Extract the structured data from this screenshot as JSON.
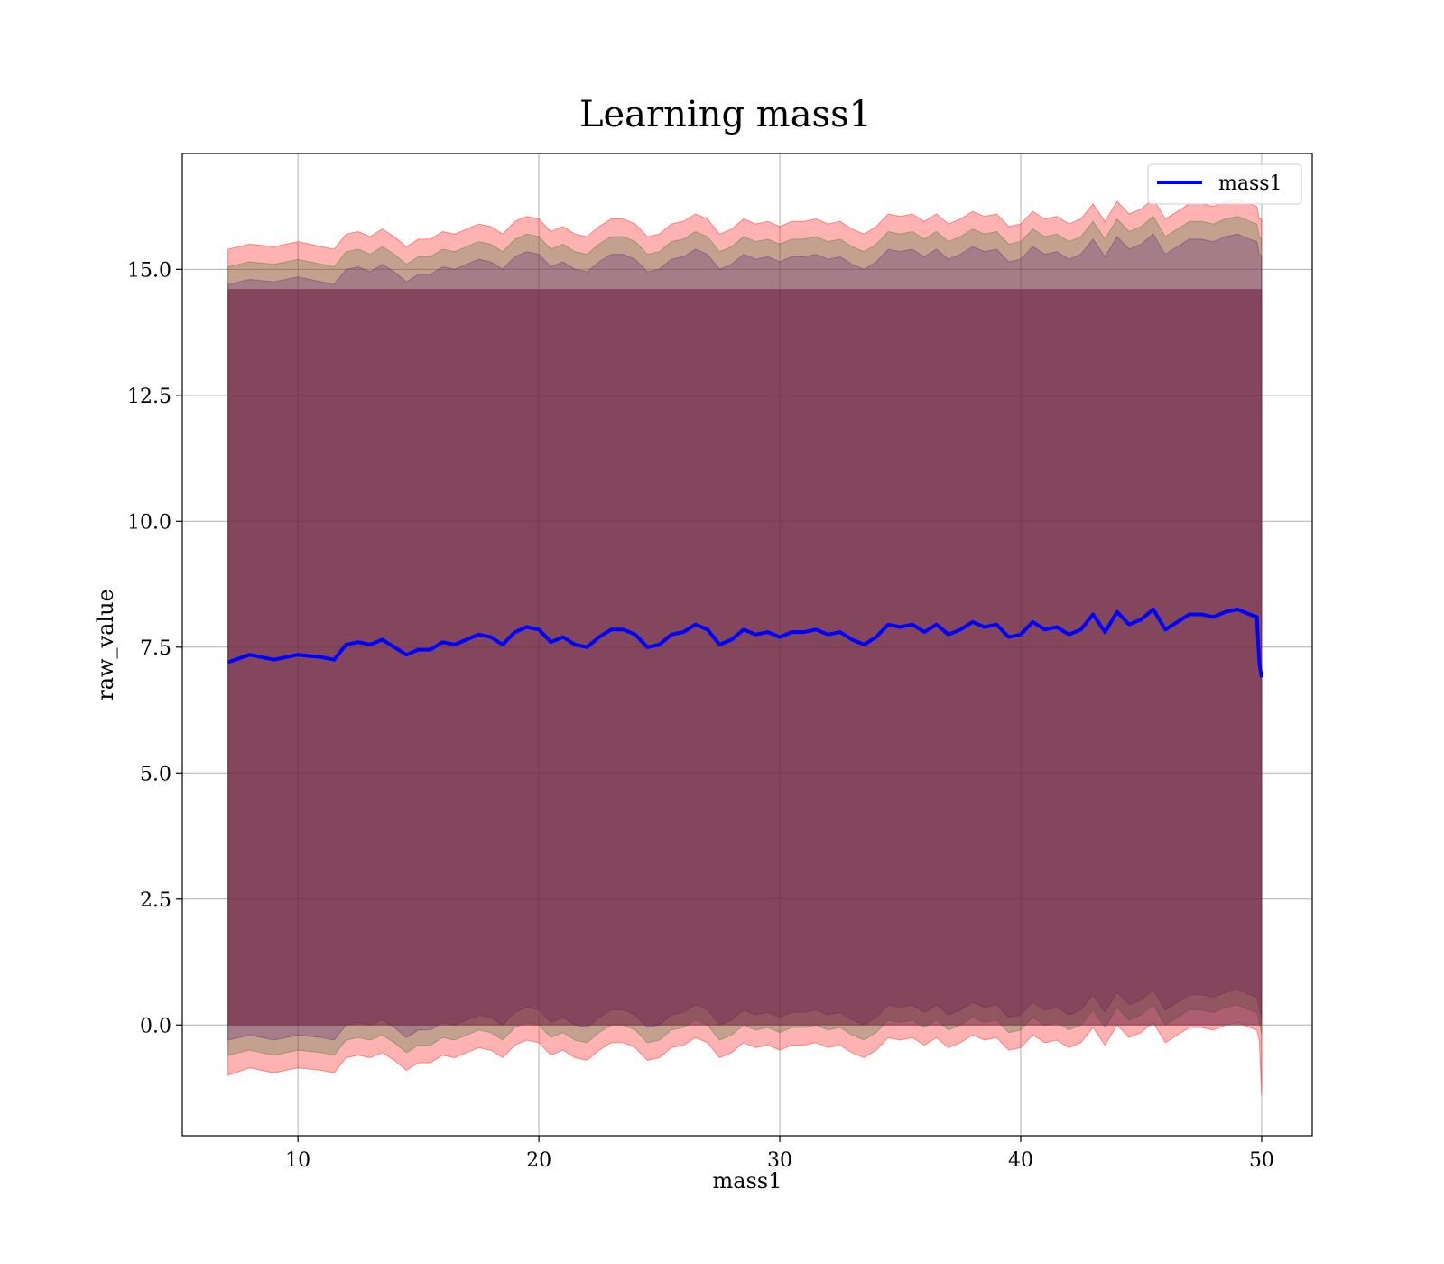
{
  "chart_data": {
    "type": "line",
    "title": "Learning mass1",
    "xlabel": "mass1",
    "ylabel": "raw_value",
    "xlim": [
      5.2,
      52.1
    ],
    "ylim": [
      -2.2,
      17.3
    ],
    "xticks": [
      10,
      20,
      30,
      40,
      50
    ],
    "yticks": [
      0.0,
      2.5,
      5.0,
      7.5,
      10.0,
      12.5,
      15.0
    ],
    "xtick_labels": [
      "10",
      "20",
      "30",
      "40",
      "50"
    ],
    "ytick_labels": [
      "0.0",
      "2.5",
      "5.0",
      "7.5",
      "10.0",
      "12.5",
      "15.0"
    ],
    "grid": true,
    "legend_position": "top-right",
    "series": [
      {
        "name": "mass1",
        "color": "#0000ff",
        "x": [
          7.1,
          8,
          9,
          10,
          11,
          11.5,
          12,
          12.5,
          13,
          13.5,
          14,
          14.5,
          15,
          15.5,
          16,
          16.5,
          17,
          17.5,
          18,
          18.5,
          19,
          19.5,
          20,
          20.5,
          21,
          21.5,
          22,
          22.5,
          23,
          23.5,
          24,
          24.5,
          25,
          25.5,
          26,
          26.5,
          27,
          27.5,
          28,
          28.5,
          29,
          29.5,
          30,
          30.5,
          31,
          31.5,
          32,
          32.5,
          33,
          33.5,
          34,
          34.5,
          35,
          35.5,
          36,
          36.5,
          37,
          37.5,
          38,
          38.5,
          39,
          39.5,
          40,
          40.5,
          41,
          41.5,
          42,
          42.5,
          43,
          43.5,
          44,
          44.5,
          45,
          45.5,
          46,
          46.5,
          47,
          47.5,
          48,
          48.5,
          49,
          49.5,
          49.8,
          49.9,
          50.0
        ],
        "y": [
          7.2,
          7.35,
          7.25,
          7.35,
          7.3,
          7.25,
          7.55,
          7.6,
          7.55,
          7.65,
          7.5,
          7.35,
          7.45,
          7.45,
          7.6,
          7.55,
          7.65,
          7.75,
          7.7,
          7.55,
          7.8,
          7.9,
          7.85,
          7.6,
          7.7,
          7.55,
          7.5,
          7.7,
          7.85,
          7.85,
          7.75,
          7.5,
          7.55,
          7.75,
          7.8,
          7.95,
          7.85,
          7.55,
          7.65,
          7.85,
          7.75,
          7.8,
          7.7,
          7.8,
          7.8,
          7.85,
          7.75,
          7.8,
          7.65,
          7.55,
          7.7,
          7.95,
          7.9,
          7.95,
          7.8,
          7.95,
          7.75,
          7.85,
          8.0,
          7.9,
          7.95,
          7.7,
          7.75,
          8.0,
          7.85,
          7.9,
          7.75,
          7.85,
          8.15,
          7.8,
          8.2,
          7.95,
          8.05,
          8.25,
          7.85,
          8.0,
          8.15,
          8.15,
          8.1,
          8.2,
          8.25,
          8.15,
          8.1,
          7.2,
          6.9
        ]
      }
    ],
    "bands": [
      {
        "color": "#ff0000",
        "opacity": 0.3,
        "x": [
          7.1,
          8,
          9,
          10,
          11,
          11.5,
          12,
          12.5,
          13,
          13.5,
          14,
          14.5,
          15,
          15.5,
          16,
          16.5,
          17,
          17.5,
          18,
          18.5,
          19,
          19.5,
          20,
          20.5,
          21,
          21.5,
          22,
          22.5,
          23,
          23.5,
          24,
          24.5,
          25,
          25.5,
          26,
          26.5,
          27,
          27.5,
          28,
          28.5,
          29,
          29.5,
          30,
          30.5,
          31,
          31.5,
          32,
          32.5,
          33,
          33.5,
          34,
          34.5,
          35,
          35.5,
          36,
          36.5,
          37,
          37.5,
          38,
          38.5,
          39,
          39.5,
          40,
          40.5,
          41,
          41.5,
          42,
          42.5,
          43,
          43.5,
          44,
          44.5,
          45,
          45.5,
          46,
          46.5,
          47,
          47.5,
          48,
          48.5,
          49,
          49.5,
          49.8,
          49.9,
          50.0
        ],
        "upper": [
          15.4,
          15.5,
          15.45,
          15.55,
          15.45,
          15.4,
          15.7,
          15.75,
          15.65,
          15.8,
          15.65,
          15.45,
          15.6,
          15.6,
          15.75,
          15.7,
          15.8,
          15.9,
          15.85,
          15.7,
          15.95,
          16.05,
          16.0,
          15.75,
          15.85,
          15.7,
          15.65,
          15.85,
          16.0,
          16.0,
          15.9,
          15.65,
          15.7,
          15.9,
          15.95,
          16.1,
          16.0,
          15.7,
          15.8,
          16.0,
          15.9,
          15.95,
          15.85,
          15.95,
          15.95,
          16.0,
          15.9,
          15.95,
          15.8,
          15.7,
          15.85,
          16.1,
          16.05,
          16.1,
          15.95,
          16.1,
          15.9,
          16.0,
          16.15,
          16.05,
          16.1,
          15.85,
          15.9,
          16.15,
          16.0,
          16.05,
          15.9,
          16.0,
          16.3,
          15.95,
          16.35,
          16.1,
          16.2,
          16.4,
          16.0,
          16.15,
          16.3,
          16.3,
          16.25,
          16.35,
          16.4,
          16.3,
          16.25,
          16.0,
          16.0
        ],
        "lower": [
          -1.0,
          -0.85,
          -0.95,
          -0.85,
          -0.9,
          -0.95,
          -0.65,
          -0.6,
          -0.65,
          -0.55,
          -0.7,
          -0.9,
          -0.75,
          -0.75,
          -0.6,
          -0.65,
          -0.55,
          -0.45,
          -0.5,
          -0.65,
          -0.4,
          -0.3,
          -0.35,
          -0.6,
          -0.5,
          -0.65,
          -0.7,
          -0.5,
          -0.35,
          -0.35,
          -0.45,
          -0.7,
          -0.65,
          -0.45,
          -0.4,
          -0.25,
          -0.35,
          -0.65,
          -0.55,
          -0.35,
          -0.45,
          -0.4,
          -0.5,
          -0.4,
          -0.4,
          -0.35,
          -0.45,
          -0.4,
          -0.55,
          -0.65,
          -0.5,
          -0.25,
          -0.3,
          -0.25,
          -0.4,
          -0.25,
          -0.45,
          -0.35,
          -0.2,
          -0.3,
          -0.25,
          -0.5,
          -0.45,
          -0.2,
          -0.35,
          -0.3,
          -0.45,
          -0.35,
          -0.05,
          -0.4,
          0.0,
          -0.25,
          -0.15,
          0.05,
          -0.35,
          -0.2,
          -0.05,
          -0.05,
          -0.1,
          0.0,
          0.05,
          -0.05,
          -0.1,
          -0.3,
          -1.4
        ]
      },
      {
        "color": "#3a7a3a",
        "opacity": 0.3,
        "x": [
          7.1,
          8,
          9,
          10,
          11,
          11.5,
          12,
          12.5,
          13,
          13.5,
          14,
          14.5,
          15,
          15.5,
          16,
          16.5,
          17,
          17.5,
          18,
          18.5,
          19,
          19.5,
          20,
          20.5,
          21,
          21.5,
          22,
          22.5,
          23,
          23.5,
          24,
          24.5,
          25,
          25.5,
          26,
          26.5,
          27,
          27.5,
          28,
          28.5,
          29,
          29.5,
          30,
          30.5,
          31,
          31.5,
          32,
          32.5,
          33,
          33.5,
          34,
          34.5,
          35,
          35.5,
          36,
          36.5,
          37,
          37.5,
          38,
          38.5,
          39,
          39.5,
          40,
          40.5,
          41,
          41.5,
          42,
          42.5,
          43,
          43.5,
          44,
          44.5,
          45,
          45.5,
          46,
          46.5,
          47,
          47.5,
          48,
          48.5,
          49,
          49.5,
          49.8,
          49.9,
          50.0
        ],
        "upper": [
          15.05,
          15.15,
          15.1,
          15.2,
          15.1,
          15.05,
          15.35,
          15.4,
          15.3,
          15.45,
          15.3,
          15.1,
          15.25,
          15.25,
          15.4,
          15.35,
          15.45,
          15.55,
          15.5,
          15.35,
          15.6,
          15.7,
          15.65,
          15.4,
          15.5,
          15.35,
          15.3,
          15.5,
          15.65,
          15.65,
          15.55,
          15.3,
          15.35,
          15.55,
          15.6,
          15.75,
          15.65,
          15.35,
          15.45,
          15.65,
          15.55,
          15.6,
          15.5,
          15.6,
          15.6,
          15.65,
          15.55,
          15.6,
          15.45,
          15.35,
          15.5,
          15.75,
          15.7,
          15.75,
          15.6,
          15.75,
          15.55,
          15.65,
          15.8,
          15.7,
          15.75,
          15.5,
          15.55,
          15.8,
          15.65,
          15.7,
          15.55,
          15.65,
          15.95,
          15.6,
          16.0,
          15.75,
          15.85,
          16.05,
          15.65,
          15.8,
          15.95,
          15.95,
          15.9,
          16.0,
          16.05,
          15.95,
          15.9,
          15.65,
          15.6
        ],
        "lower": [
          -0.6,
          -0.5,
          -0.6,
          -0.5,
          -0.55,
          -0.6,
          -0.3,
          -0.25,
          -0.3,
          -0.2,
          -0.35,
          -0.55,
          -0.4,
          -0.4,
          -0.25,
          -0.3,
          -0.2,
          -0.1,
          -0.15,
          -0.3,
          -0.05,
          0.05,
          0.0,
          -0.25,
          -0.15,
          -0.3,
          -0.35,
          -0.15,
          0.0,
          0.0,
          -0.1,
          -0.35,
          -0.3,
          -0.1,
          -0.05,
          0.1,
          0.0,
          -0.3,
          -0.2,
          0.0,
          -0.1,
          -0.05,
          -0.15,
          -0.05,
          -0.05,
          0.0,
          -0.1,
          -0.05,
          -0.2,
          -0.3,
          -0.15,
          0.1,
          0.05,
          0.1,
          -0.05,
          0.1,
          -0.1,
          0.0,
          0.15,
          0.05,
          0.1,
          -0.15,
          -0.1,
          0.15,
          0.0,
          0.05,
          -0.1,
          0.0,
          0.3,
          -0.05,
          0.35,
          0.1,
          0.2,
          0.4,
          0.0,
          0.15,
          0.3,
          0.3,
          0.25,
          0.35,
          0.4,
          0.3,
          0.25,
          0.05,
          -0.2
        ]
      },
      {
        "color": "#5a2a7a",
        "opacity": 0.3,
        "x": [
          7.1,
          8,
          9,
          10,
          11,
          11.5,
          12,
          12.5,
          13,
          13.5,
          14,
          14.5,
          15,
          15.5,
          16,
          16.5,
          17,
          17.5,
          18,
          18.5,
          19,
          19.5,
          20,
          20.5,
          21,
          21.5,
          22,
          22.5,
          23,
          23.5,
          24,
          24.5,
          25,
          25.5,
          26,
          26.5,
          27,
          27.5,
          28,
          28.5,
          29,
          29.5,
          30,
          30.5,
          31,
          31.5,
          32,
          32.5,
          33,
          33.5,
          34,
          34.5,
          35,
          35.5,
          36,
          36.5,
          37,
          37.5,
          38,
          38.5,
          39,
          39.5,
          40,
          40.5,
          41,
          41.5,
          42,
          42.5,
          43,
          43.5,
          44,
          44.5,
          45,
          45.5,
          46,
          46.5,
          47,
          47.5,
          48,
          48.5,
          49,
          49.5,
          49.8,
          49.9,
          50.0
        ],
        "upper": [
          14.7,
          14.8,
          14.75,
          14.85,
          14.75,
          14.7,
          15.0,
          15.05,
          14.95,
          15.1,
          14.95,
          14.75,
          14.9,
          14.9,
          15.05,
          15.0,
          15.1,
          15.2,
          15.15,
          15.0,
          15.25,
          15.35,
          15.3,
          15.05,
          15.15,
          15.0,
          14.95,
          15.15,
          15.3,
          15.3,
          15.2,
          14.95,
          15.0,
          15.2,
          15.25,
          15.4,
          15.3,
          15.0,
          15.1,
          15.3,
          15.2,
          15.25,
          15.15,
          15.25,
          15.25,
          15.3,
          15.2,
          15.25,
          15.1,
          15.0,
          15.15,
          15.4,
          15.35,
          15.4,
          15.25,
          15.4,
          15.2,
          15.3,
          15.45,
          15.35,
          15.4,
          15.15,
          15.2,
          15.45,
          15.3,
          15.35,
          15.2,
          15.3,
          15.6,
          15.25,
          15.65,
          15.4,
          15.5,
          15.7,
          15.3,
          15.45,
          15.6,
          15.6,
          15.55,
          15.65,
          15.7,
          15.6,
          15.55,
          15.3,
          15.25
        ],
        "lower": [
          -0.3,
          -0.2,
          -0.3,
          -0.2,
          -0.25,
          -0.3,
          0.0,
          0.05,
          0.0,
          0.1,
          -0.05,
          -0.25,
          -0.1,
          -0.1,
          0.05,
          0.0,
          0.1,
          0.2,
          0.15,
          0.0,
          0.25,
          0.35,
          0.3,
          0.05,
          0.15,
          0.0,
          -0.05,
          0.15,
          0.3,
          0.3,
          0.2,
          -0.05,
          0.0,
          0.2,
          0.25,
          0.4,
          0.3,
          0.0,
          0.1,
          0.3,
          0.2,
          0.25,
          0.15,
          0.25,
          0.25,
          0.3,
          0.2,
          0.25,
          0.1,
          0.0,
          0.15,
          0.4,
          0.35,
          0.4,
          0.25,
          0.4,
          0.2,
          0.3,
          0.45,
          0.35,
          0.4,
          0.15,
          0.2,
          0.45,
          0.3,
          0.35,
          0.2,
          0.3,
          0.6,
          0.25,
          0.65,
          0.4,
          0.5,
          0.7,
          0.3,
          0.45,
          0.6,
          0.6,
          0.55,
          0.65,
          0.7,
          0.6,
          0.55,
          0.35,
          0.1
        ]
      },
      {
        "color": "#6a1a3a",
        "opacity": 0.55,
        "x": [
          7.1,
          50.0
        ],
        "upper": [
          14.6,
          14.6
        ],
        "lower": [
          0.0,
          0.0
        ]
      }
    ]
  }
}
